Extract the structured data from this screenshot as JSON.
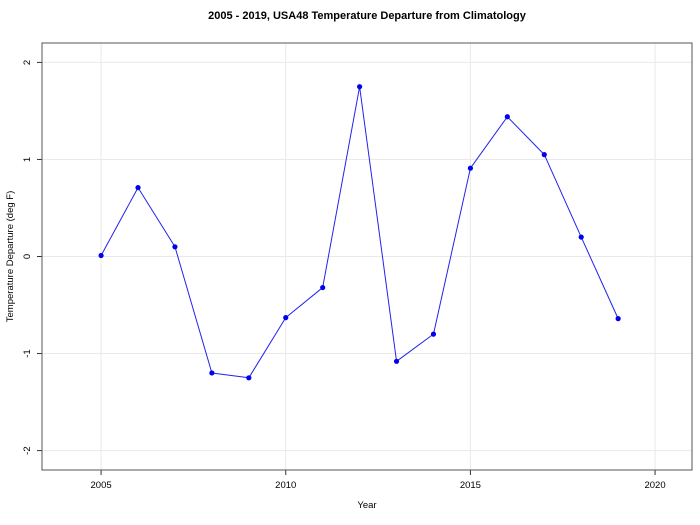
{
  "figure": {
    "title": "2005 - 2019, USA48 Temperature Departure from Climatology",
    "xlabel": "Year",
    "ylabel": "Temperature Departure (deg F)"
  },
  "chart_data": {
    "type": "line",
    "title": "2005 - 2019, USA48 Temperature Departure from Climatology",
    "xlabel": "Year",
    "ylabel": "Temperature Departure (deg F)",
    "x": [
      2005,
      2006,
      2007,
      2008,
      2009,
      2010,
      2011,
      2012,
      2013,
      2014,
      2015,
      2016,
      2017,
      2018,
      2019
    ],
    "y": [
      0.01,
      0.71,
      0.1,
      -1.2,
      -1.25,
      -0.63,
      -0.32,
      1.75,
      -1.08,
      -0.8,
      0.91,
      1.44,
      1.05,
      0.2,
      -0.64
    ],
    "xlim": [
      2003.4,
      2021.0
    ],
    "ylim": [
      -2.2,
      2.2
    ],
    "xticks": [
      2005,
      2010,
      2015,
      2020
    ],
    "yticks": [
      -2,
      -1,
      0,
      1,
      2
    ],
    "grid": true,
    "legend": "none",
    "line_color": "#2222EE",
    "marker_color": "#0000EE",
    "grid_color": "#E9E9E9",
    "box_color": "#555555",
    "tick_color": "#333333",
    "text_color": "#000000",
    "background": "#FFFFFF"
  }
}
